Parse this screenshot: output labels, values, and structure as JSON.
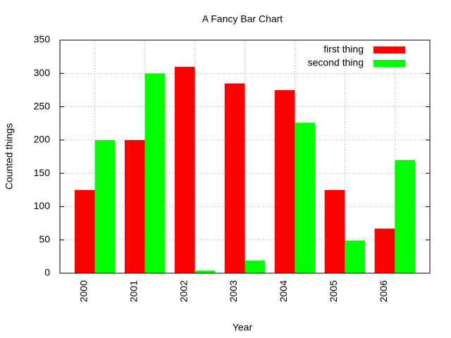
{
  "chart_data": {
    "type": "bar",
    "title": "A Fancy Bar Chart",
    "x_label": "Year",
    "y_label": "Counted things",
    "categories": [
      "2000",
      "2001",
      "2002",
      "2003",
      "2004",
      "2005",
      "2006"
    ],
    "series": [
      {
        "name": "first thing",
        "color": "#ff0000",
        "values": [
          125,
          200,
          310,
          285,
          275,
          125,
          67
        ]
      },
      {
        "name": "second thing",
        "color": "#00ff00",
        "values": [
          200,
          300,
          4,
          19,
          226,
          49,
          170
        ]
      }
    ],
    "ylim": [
      0,
      350
    ],
    "yticks": [
      0,
      50,
      100,
      150,
      200,
      250,
      300,
      350
    ],
    "grid": true,
    "legend": "top-right"
  }
}
